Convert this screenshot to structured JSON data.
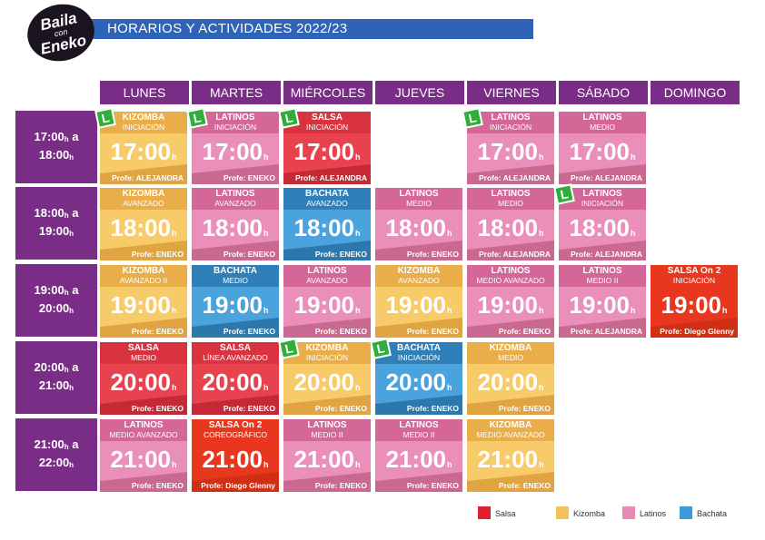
{
  "header": {
    "title": "HORARIOS Y ACTIVIDADES 2022/23",
    "logo": {
      "line1": "Baila",
      "line2": "con",
      "line3": "Eneko"
    }
  },
  "colors": {
    "purple": "#7a2d86",
    "blue_header": "#2e63b8",
    "salsa_red": "#d9333f",
    "salsa_on2": "#e8371e",
    "kizomba": "#f4c25a",
    "latinos": "#e98ab6",
    "bachata": "#3d9ad6",
    "badge_green": "#2fae3a"
  },
  "days": [
    "LUNES",
    "MARTES",
    "MIÉRCOLES",
    "JUEVES",
    "VIERNES",
    "SÁBADO",
    "DOMINGO"
  ],
  "times": [
    {
      "from": "17:00",
      "to": "18:00"
    },
    {
      "from": "18:00",
      "to": "19:00"
    },
    {
      "from": "19:00",
      "to": "20:00"
    },
    {
      "from": "20:00",
      "to": "21:00"
    },
    {
      "from": "21:00",
      "to": "22:00"
    }
  ],
  "time_suffix_a": "a",
  "time_suffix_h": "h",
  "prof_prefix": "Profe: ",
  "badge_letter": "L",
  "classes": [
    {
      "day": 0,
      "row": 0,
      "style": "kizomba",
      "name": "KIZOMBA",
      "level": "INICIACIÓN",
      "time": "17:00",
      "prof": "ALEJANDRA",
      "badge": true
    },
    {
      "day": 1,
      "row": 0,
      "style": "latinos",
      "name": "LATINOS",
      "level": "INICIACIÓN",
      "time": "17:00",
      "prof": "ENEKO",
      "badge": true
    },
    {
      "day": 2,
      "row": 0,
      "style": "salsa",
      "name": "SALSA",
      "level": "INICIACIÓN",
      "time": "17:00",
      "prof": "ALEJANDRA",
      "badge": true
    },
    {
      "day": 4,
      "row": 0,
      "style": "latinos",
      "name": "LATINOS",
      "level": "INICIACIÓN",
      "time": "17:00",
      "prof": "ALEJANDRA",
      "badge": true
    },
    {
      "day": 5,
      "row": 0,
      "style": "latinos",
      "name": "LATINOS",
      "level": "MEDIO",
      "time": "17:00",
      "prof": "ALEJANDRA",
      "badge": false
    },
    {
      "day": 0,
      "row": 1,
      "style": "kizomba",
      "name": "KIZOMBA",
      "level": "AVANZADO",
      "time": "18:00",
      "prof": "ENEKO",
      "badge": false
    },
    {
      "day": 1,
      "row": 1,
      "style": "latinos",
      "name": "LATINOS",
      "level": "AVANZADO",
      "time": "18:00",
      "prof": "ENEKO",
      "badge": false
    },
    {
      "day": 2,
      "row": 1,
      "style": "bachata",
      "name": "BACHATA",
      "level": "AVANZADO",
      "time": "18:00",
      "prof": "ENEKO",
      "badge": false
    },
    {
      "day": 3,
      "row": 1,
      "style": "latinos",
      "name": "LATINOS",
      "level": "MEDIO",
      "time": "18:00",
      "prof": "ENEKO",
      "badge": false
    },
    {
      "day": 4,
      "row": 1,
      "style": "latinos",
      "name": "LATINOS",
      "level": "MEDIO",
      "time": "18:00",
      "prof": "ALEJANDRA",
      "badge": false
    },
    {
      "day": 5,
      "row": 1,
      "style": "latinos",
      "name": "LATINOS",
      "level": "INICIACIÓN",
      "time": "18:00",
      "prof": "ALEJANDRA",
      "badge": true
    },
    {
      "day": 0,
      "row": 2,
      "style": "kizomba",
      "name": "KIZOMBA",
      "level": "AVANZADO II",
      "time": "19:00",
      "prof": "ENEKO",
      "badge": false
    },
    {
      "day": 1,
      "row": 2,
      "style": "bachata",
      "name": "BACHATA",
      "level": "MEDIO",
      "time": "19:00",
      "prof": "ENEKO",
      "badge": false
    },
    {
      "day": 2,
      "row": 2,
      "style": "latinos",
      "name": "LATINOS",
      "level": "AVANZADO",
      "time": "19:00",
      "prof": "ENEKO",
      "badge": false
    },
    {
      "day": 3,
      "row": 2,
      "style": "kizomba",
      "name": "KIZOMBA",
      "level": "AVANZADO",
      "time": "19:00",
      "prof": "ENEKO",
      "badge": false
    },
    {
      "day": 4,
      "row": 2,
      "style": "latinos",
      "name": "LATINOS",
      "level": "MEDIO AVANZADO",
      "time": "19:00",
      "prof": "ENEKO",
      "badge": false
    },
    {
      "day": 5,
      "row": 2,
      "style": "latinos",
      "name": "LATINOS",
      "level": "MEDIO II",
      "time": "19:00",
      "prof": "ALEJANDRA",
      "badge": false
    },
    {
      "day": 6,
      "row": 2,
      "style": "salsaon2",
      "name": "SALSA On 2",
      "level": "INICIACIÓN",
      "time": "19:00",
      "prof": "Diego Glenny",
      "badge": false
    },
    {
      "day": 0,
      "row": 3,
      "style": "salsa",
      "name": "SALSA",
      "level": "MEDIO",
      "time": "20:00",
      "prof": "ENEKO",
      "badge": false
    },
    {
      "day": 1,
      "row": 3,
      "style": "salsa",
      "name": "SALSA",
      "level": "LÍNEA AVANZADO",
      "time": "20:00",
      "prof": "ENEKO",
      "badge": false
    },
    {
      "day": 2,
      "row": 3,
      "style": "kizomba",
      "name": "KIZOMBA",
      "level": "INICIACIÓN",
      "time": "20:00",
      "prof": "ENEKO",
      "badge": true
    },
    {
      "day": 3,
      "row": 3,
      "style": "bachata",
      "name": "BACHATA",
      "level": "INICIACIÓN",
      "time": "20:00",
      "prof": "ENEKO",
      "badge": true
    },
    {
      "day": 4,
      "row": 3,
      "style": "kizomba",
      "name": "KIZOMBA",
      "level": "MEDIO",
      "time": "20:00",
      "prof": "ENEKO",
      "badge": false
    },
    {
      "day": 0,
      "row": 4,
      "style": "latinos",
      "name": "LATINOS",
      "level": "MEDIO AVANZADO",
      "time": "21:00",
      "prof": "ENEKO",
      "badge": false
    },
    {
      "day": 1,
      "row": 4,
      "style": "salsaon2",
      "name": "SALSA On 2",
      "level": "COREOGRÁFICO",
      "time": "21:00",
      "prof": "Diego Glenny",
      "badge": false
    },
    {
      "day": 2,
      "row": 4,
      "style": "latinos",
      "name": "LATINOS",
      "level": "MEDIO II",
      "time": "21:00",
      "prof": "ENEKO",
      "badge": false
    },
    {
      "day": 3,
      "row": 4,
      "style": "latinos",
      "name": "LATINOS",
      "level": "MEDIO II",
      "time": "21:00",
      "prof": "ENEKO",
      "badge": false
    },
    {
      "day": 4,
      "row": 4,
      "style": "kizomba",
      "name": "KIZOMBA",
      "level": "MEDIO AVANZADO",
      "time": "21:00",
      "prof": "ENEKO",
      "badge": false
    }
  ],
  "legend": [
    {
      "label": "Salsa",
      "color": "#e0202a"
    },
    {
      "label": "Kizomba",
      "color": "#f4c25a"
    },
    {
      "label": "Latinos",
      "color": "#e98ab6"
    },
    {
      "label": "Bachata",
      "color": "#3d9ad6"
    }
  ]
}
